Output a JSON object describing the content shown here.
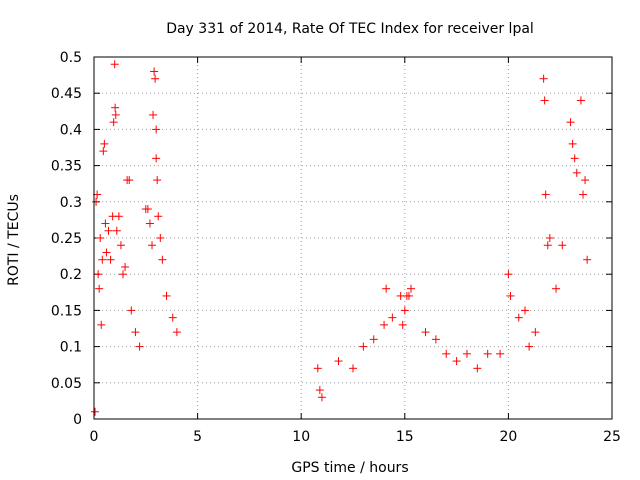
{
  "chart_data": {
    "type": "scatter",
    "title": "Day 331 of 2014, Rate Of TEC Index for receiver lpal",
    "xlabel": "GPS time / hours",
    "ylabel": "ROTI / TECUs",
    "xlim": [
      0,
      25
    ],
    "ylim": [
      0,
      0.5
    ],
    "x_ticks": [
      "0",
      "5",
      "10",
      "15",
      "20",
      "25"
    ],
    "y_ticks": [
      "0",
      "0.05",
      "0.1",
      "0.15",
      "0.2",
      "0.25",
      "0.3",
      "0.35",
      "0.4",
      "0.45",
      "0.5"
    ],
    "grid": true,
    "marker": "+",
    "marker_color": "#ff0000",
    "series": [
      {
        "name": "ROTI",
        "points": [
          [
            0.05,
            0.01
          ],
          [
            0.1,
            0.3
          ],
          [
            0.15,
            0.31
          ],
          [
            0.2,
            0.2
          ],
          [
            0.25,
            0.18
          ],
          [
            0.3,
            0.25
          ],
          [
            0.35,
            0.13
          ],
          [
            0.4,
            0.22
          ],
          [
            0.45,
            0.37
          ],
          [
            0.5,
            0.38
          ],
          [
            0.55,
            0.27
          ],
          [
            0.6,
            0.23
          ],
          [
            0.7,
            0.26
          ],
          [
            0.8,
            0.22
          ],
          [
            0.9,
            0.28
          ],
          [
            0.95,
            0.41
          ],
          [
            1.0,
            0.49
          ],
          [
            1.02,
            0.43
          ],
          [
            1.05,
            0.42
          ],
          [
            1.1,
            0.26
          ],
          [
            1.2,
            0.28
          ],
          [
            1.3,
            0.24
          ],
          [
            1.4,
            0.2
          ],
          [
            1.5,
            0.21
          ],
          [
            1.6,
            0.33
          ],
          [
            1.7,
            0.33
          ],
          [
            1.8,
            0.15
          ],
          [
            2.0,
            0.12
          ],
          [
            2.2,
            0.1
          ],
          [
            2.5,
            0.29
          ],
          [
            2.6,
            0.29
          ],
          [
            2.7,
            0.27
          ],
          [
            2.8,
            0.24
          ],
          [
            2.85,
            0.42
          ],
          [
            2.9,
            0.48
          ],
          [
            2.95,
            0.47
          ],
          [
            3.0,
            0.4
          ],
          [
            3.0,
            0.36
          ],
          [
            3.05,
            0.33
          ],
          [
            3.1,
            0.28
          ],
          [
            3.2,
            0.25
          ],
          [
            3.3,
            0.22
          ],
          [
            3.5,
            0.17
          ],
          [
            3.8,
            0.14
          ],
          [
            4.0,
            0.12
          ],
          [
            10.8,
            0.07
          ],
          [
            10.9,
            0.04
          ],
          [
            11.0,
            0.03
          ],
          [
            11.8,
            0.08
          ],
          [
            12.5,
            0.07
          ],
          [
            13.0,
            0.1
          ],
          [
            13.5,
            0.11
          ],
          [
            14.0,
            0.13
          ],
          [
            14.1,
            0.18
          ],
          [
            14.4,
            0.14
          ],
          [
            14.8,
            0.17
          ],
          [
            14.9,
            0.13
          ],
          [
            15.0,
            0.15
          ],
          [
            15.1,
            0.17
          ],
          [
            15.2,
            0.17
          ],
          [
            15.3,
            0.18
          ],
          [
            16.0,
            0.12
          ],
          [
            16.5,
            0.11
          ],
          [
            17.0,
            0.09
          ],
          [
            17.5,
            0.08
          ],
          [
            18.0,
            0.09
          ],
          [
            18.5,
            0.07
          ],
          [
            19.0,
            0.09
          ],
          [
            19.6,
            0.09
          ],
          [
            20.0,
            0.2
          ],
          [
            20.1,
            0.17
          ],
          [
            20.5,
            0.14
          ],
          [
            20.8,
            0.15
          ],
          [
            21.0,
            0.1
          ],
          [
            21.3,
            0.12
          ],
          [
            21.7,
            0.47
          ],
          [
            21.75,
            0.44
          ],
          [
            21.8,
            0.31
          ],
          [
            21.9,
            0.24
          ],
          [
            22.0,
            0.25
          ],
          [
            22.3,
            0.18
          ],
          [
            22.6,
            0.24
          ],
          [
            23.0,
            0.41
          ],
          [
            23.1,
            0.38
          ],
          [
            23.2,
            0.36
          ],
          [
            23.3,
            0.34
          ],
          [
            23.5,
            0.44
          ],
          [
            23.6,
            0.31
          ],
          [
            23.7,
            0.33
          ],
          [
            23.8,
            0.22
          ]
        ]
      }
    ]
  }
}
